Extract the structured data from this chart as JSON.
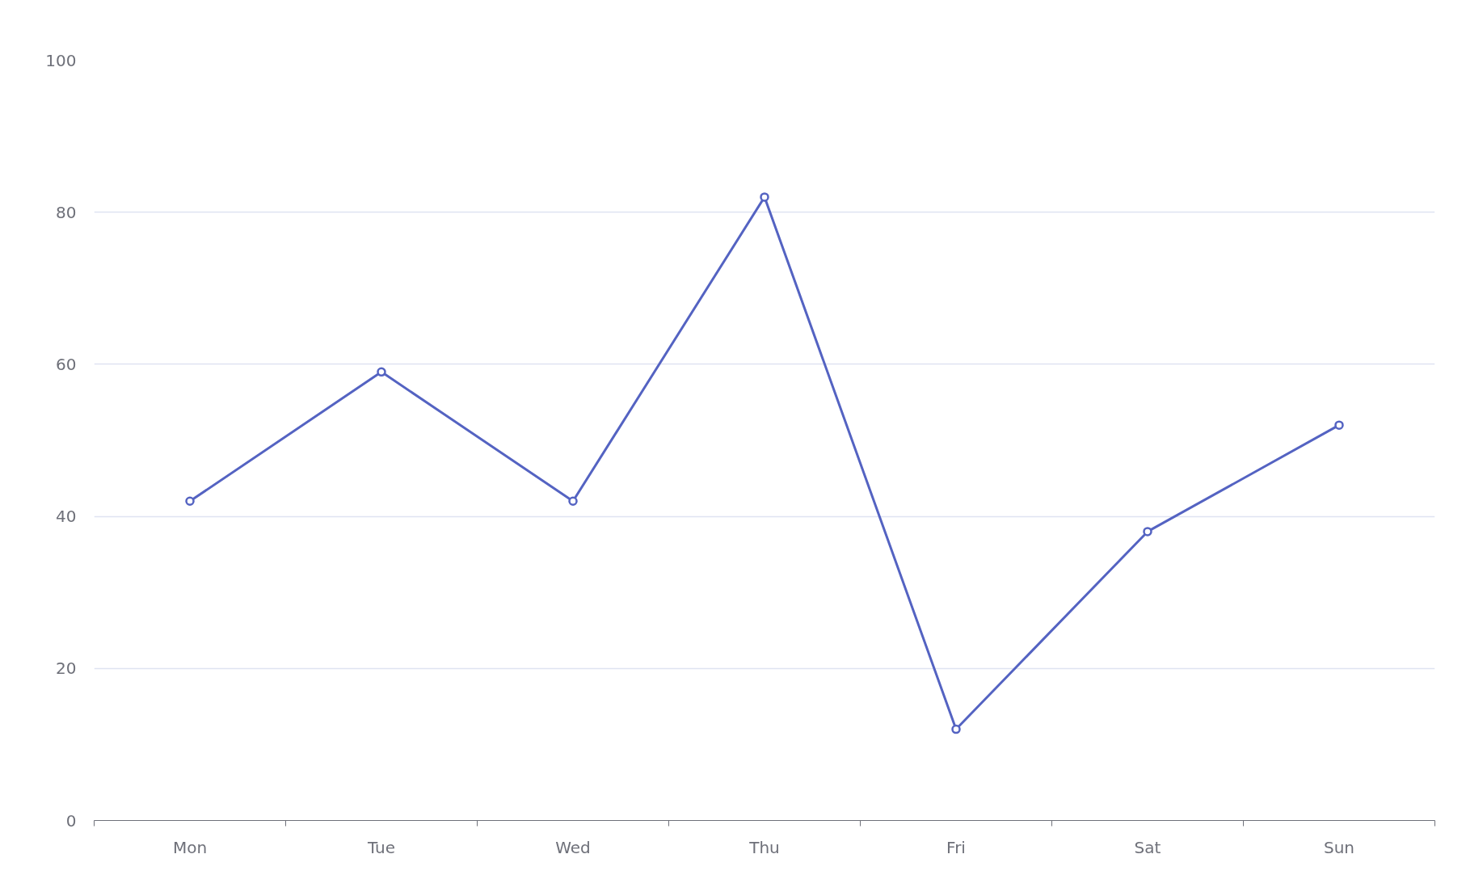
{
  "chart_data": {
    "type": "line",
    "categories": [
      "Mon",
      "Tue",
      "Wed",
      "Thu",
      "Fri",
      "Sat",
      "Sun"
    ],
    "series": [
      {
        "color": "#5463c2",
        "values": [
          42,
          59,
          42,
          82,
          12,
          38,
          52
        ]
      }
    ],
    "ylim": [
      0,
      100
    ],
    "yticks": [
      0,
      20,
      40,
      60,
      80,
      100
    ],
    "grid": "y",
    "marker": "circle",
    "line_style": "solid"
  }
}
